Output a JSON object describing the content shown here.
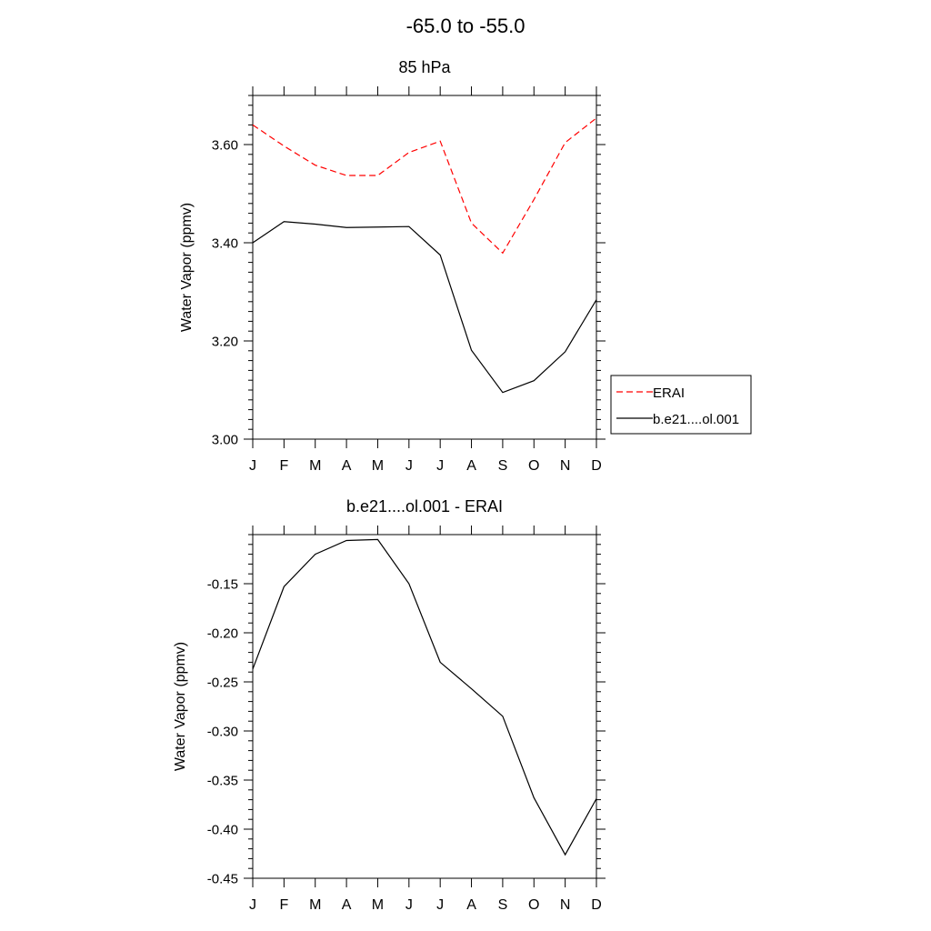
{
  "figure": {
    "title": "-65.0 to -55.0"
  },
  "chart_data": [
    {
      "type": "line",
      "title": "85 hPa",
      "xlabel": "",
      "ylabel": "Water Vapor (ppmv)",
      "categories": [
        "J",
        "F",
        "M",
        "A",
        "M",
        "J",
        "J",
        "A",
        "S",
        "O",
        "N",
        "D"
      ],
      "ylim": [
        3.0,
        3.7
      ],
      "yticks": [
        3.0,
        3.2,
        3.4,
        3.6
      ],
      "ytick_labels": [
        "3.00",
        "3.20",
        "3.40",
        "3.60"
      ],
      "grid": false,
      "legend": "right",
      "series": [
        {
          "name": "ERAI",
          "color": "#ff0000",
          "dash": "dashed",
          "values": [
            3.64,
            3.597,
            3.558,
            3.537,
            3.537,
            3.584,
            3.607,
            3.44,
            3.379,
            3.488,
            3.604,
            3.654
          ]
        },
        {
          "name": "b.e21....ol.001",
          "color": "#000000",
          "dash": "solid",
          "values": [
            3.4,
            3.443,
            3.438,
            3.431,
            3.432,
            3.433,
            3.375,
            3.181,
            3.095,
            3.119,
            3.178,
            3.284
          ]
        }
      ]
    },
    {
      "type": "line",
      "title": "b.e21....ol.001 - ERAI",
      "xlabel": "",
      "ylabel": "Water Vapor (ppmv)",
      "categories": [
        "J",
        "F",
        "M",
        "A",
        "M",
        "J",
        "J",
        "A",
        "S",
        "O",
        "N",
        "D"
      ],
      "ylim": [
        -0.45,
        -0.1
      ],
      "yticks": [
        -0.45,
        -0.4,
        -0.35,
        -0.3,
        -0.25,
        -0.2,
        -0.15
      ],
      "ytick_labels": [
        "-0.45",
        "-0.40",
        "-0.35",
        "-0.30",
        "-0.25",
        "-0.20",
        "-0.15"
      ],
      "grid": false,
      "series": [
        {
          "color": "#000000",
          "dash": "solid",
          "values": [
            -0.237,
            -0.153,
            -0.12,
            -0.106,
            -0.105,
            -0.15,
            -0.23,
            -0.257,
            -0.285,
            -0.368,
            -0.426,
            -0.369
          ]
        }
      ]
    }
  ]
}
